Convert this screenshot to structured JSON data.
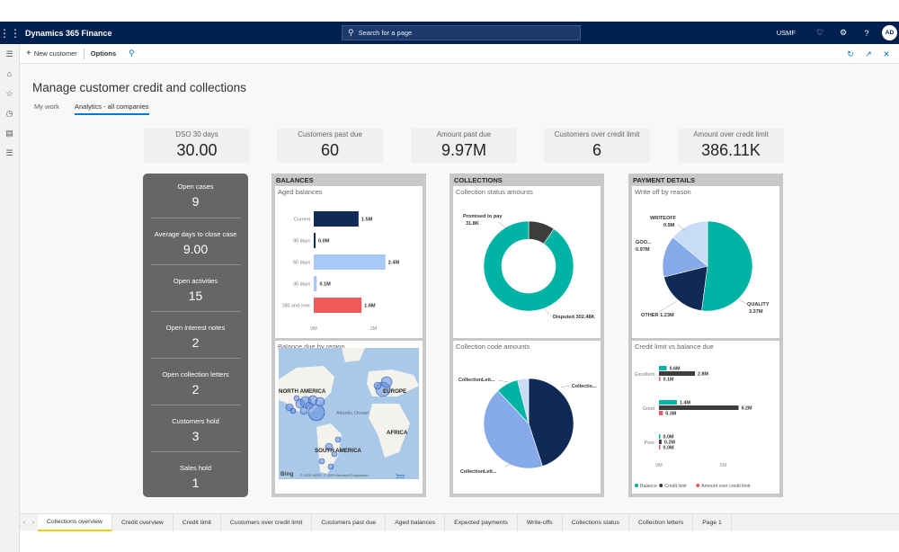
{
  "app": {
    "title": "Dynamics 365 Finance",
    "search_placeholder": "Search for a page",
    "company": "USMF",
    "avatar_initials": "AD"
  },
  "actions": {
    "new_customer": "New customer",
    "options": "Options"
  },
  "page": {
    "title": "Manage customer credit and collections",
    "tabs": [
      "My work",
      "Analytics - all companies"
    ]
  },
  "kpis": [
    {
      "label": "DSO 30 days",
      "value": "30.00"
    },
    {
      "label": "Customers past due",
      "value": "60"
    },
    {
      "label": "Amount past due",
      "value": "9.97M"
    },
    {
      "label": "Customers over credit limit",
      "value": "6"
    },
    {
      "label": "Amount over credit limit",
      "value": "386.11K"
    }
  ],
  "summary": [
    {
      "label": "Open cases",
      "value": "9"
    },
    {
      "label": "Average days to close case",
      "value": "9.00"
    },
    {
      "label": "Open activities",
      "value": "15"
    },
    {
      "label": "Open interest notes",
      "value": "2"
    },
    {
      "label": "Open collection letters",
      "value": "2"
    },
    {
      "label": "Customers hold",
      "value": "3"
    },
    {
      "label": "Sales hold",
      "value": "1"
    }
  ],
  "balances": {
    "title": "BALANCES",
    "aged_title": "Aged balances",
    "map_title": "Balance due by region",
    "map_labels": [
      "NORTH AMERICA",
      "Atlantic Ocean",
      "EUROPE",
      "AFRICA",
      "SOUTH AMERICA"
    ],
    "map_brand": "Bing",
    "map_credit": "© 2020 HERE, © 2020 Microsoft Corporation",
    "map_terms": "Terms"
  },
  "collections": {
    "title": "COLLECTIONS",
    "status_title": "Collection status amounts",
    "code_title": "Collection code amounts"
  },
  "payment": {
    "title": "PAYMENT DETAILS",
    "writeoff_title": "Write off by reason",
    "credit_title": "Credit limit vs balance due"
  },
  "chart_data": [
    {
      "type": "bar",
      "title": "Aged balances",
      "categories": [
        "Current",
        "90 days",
        "60 days",
        "30 days",
        "180 and over"
      ],
      "values": [
        1.5,
        0.0,
        2.4,
        0.1,
        1.6
      ],
      "labels": [
        "1.5M",
        "0.0M",
        "2.4M",
        "0.1M",
        "1.6M"
      ],
      "colors": [
        "#0f2a56",
        "#0f2a56",
        "#a8c8f5",
        "#a8c8f5",
        "#f05a5a"
      ],
      "xticks": [
        "0M",
        "2M"
      ],
      "xlim": [
        0,
        2.6
      ]
    },
    {
      "type": "pie",
      "title": "Collection status amounts",
      "donut": true,
      "slices": [
        {
          "label": "Promised to pay",
          "value": 31.8,
          "display": "31.8K",
          "color": "#3d3d3d"
        },
        {
          "label": "Disputed",
          "value": 302.48,
          "display": "302.48K",
          "color": "#00b3a4"
        }
      ]
    },
    {
      "type": "pie",
      "title": "Collection code amounts",
      "slices": [
        {
          "label": "Collectio...",
          "value": 45,
          "color": "#0f2a56"
        },
        {
          "label": "CollectionLett...",
          "value": 43,
          "color": "#86a9ea"
        },
        {
          "label": "CollectionLett...",
          "value": 8,
          "color": "#00b3a4"
        },
        {
          "label": "",
          "value": 4,
          "color": "#c9dcf7"
        }
      ]
    },
    {
      "type": "pie",
      "title": "Write off by reason",
      "slices": [
        {
          "label": "QUALITY",
          "value": 3.37,
          "display": "3.37M",
          "color": "#00b3a4"
        },
        {
          "label": "OTHER",
          "value": 1.23,
          "display": "1.23M",
          "color": "#0f2a56"
        },
        {
          "label": "GOO...",
          "value": 0.97,
          "display": "0.97M",
          "color": "#86a9ea"
        },
        {
          "label": "WRITEOFF",
          "value": 0.9,
          "display": "0.9M",
          "color": "#c9dcf7"
        }
      ]
    },
    {
      "type": "bar",
      "title": "Credit limit vs balance due",
      "categories": [
        "Excellent",
        "Good",
        "Poor"
      ],
      "series": [
        {
          "name": "Balance",
          "values": [
            0.6,
            1.4,
            0.0
          ],
          "labels": [
            "0.6M",
            "1.4M",
            "0.0M"
          ],
          "color": "#00b3a4"
        },
        {
          "name": "Credit limit",
          "values": [
            2.8,
            6.2,
            0.2
          ],
          "labels": [
            "2.8M",
            "6.2M",
            "0.2M"
          ],
          "color": "#3d3d3d"
        },
        {
          "name": "Amount over credit limit",
          "values": [
            0.1,
            0.3,
            0.0
          ],
          "labels": [
            "0.1M",
            "0.3M",
            "0.0M"
          ],
          "color": "#f05a5a"
        }
      ],
      "xticks": [
        "0M",
        "5M"
      ],
      "xlim": [
        0,
        7
      ]
    }
  ],
  "bottom_tabs": [
    "Collections overview",
    "Credit overview",
    "Credit limit",
    "Customers over credit limit",
    "Customers past due",
    "Aged balances",
    "Expected payments",
    "Write-offs",
    "Collections status",
    "Collection letters",
    "Page 1"
  ]
}
